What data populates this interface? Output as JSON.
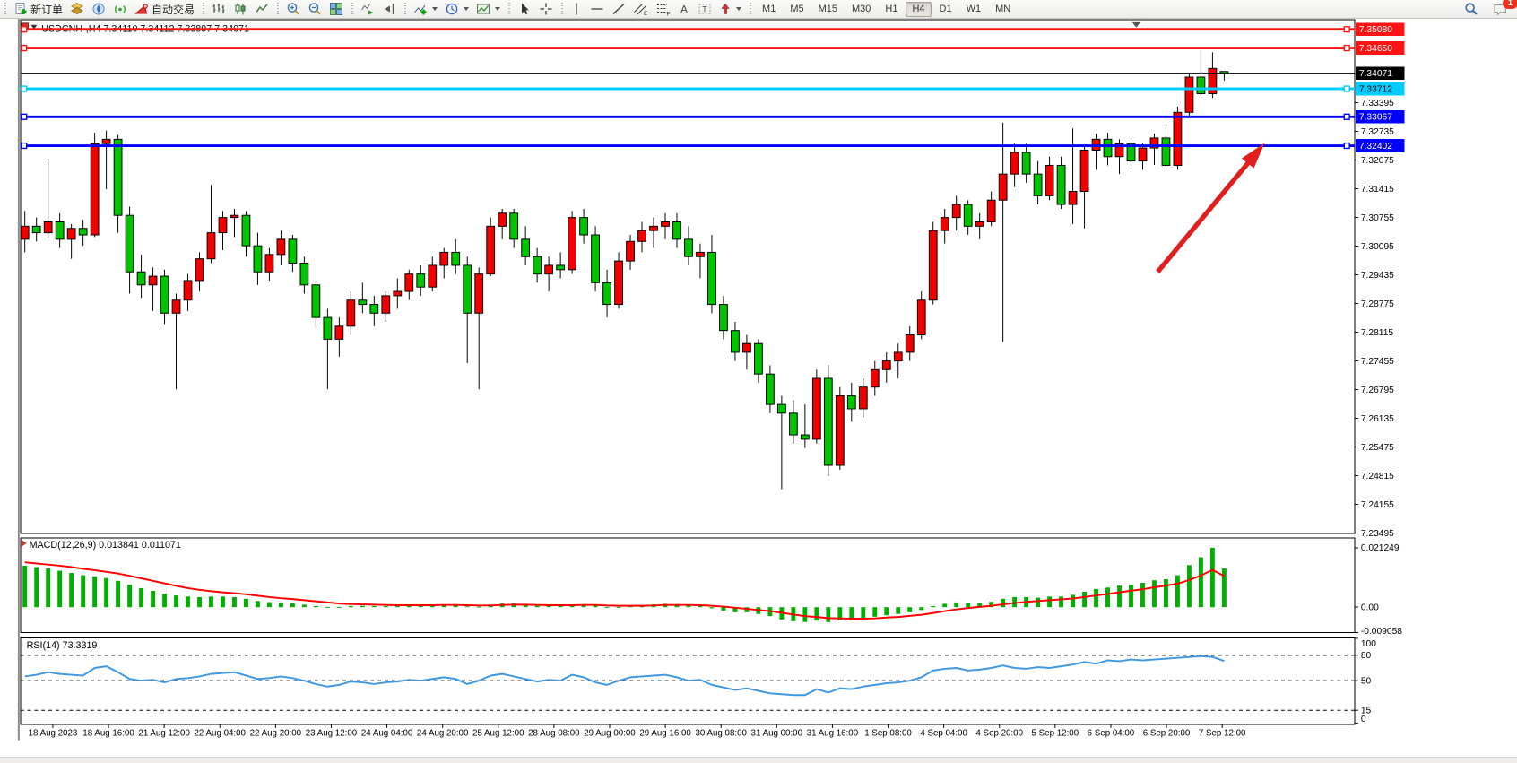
{
  "toolbar": {
    "new_order_label": "新订单",
    "autotrade_label": "自动交易",
    "glyphs": {
      "channel": "E",
      "fibonacci": "F",
      "text_tool": "A",
      "label_tool": "T"
    },
    "timeframes": [
      "M1",
      "M5",
      "M15",
      "M30",
      "H1",
      "H4",
      "D1",
      "W1",
      "MN"
    ],
    "active_timeframe": "H4",
    "notification_count": "1"
  },
  "chart_data": {
    "type": "candlestick",
    "symbol": "USDCNH-",
    "timeframe": "H4",
    "title_text": "USDCNH-,H4  7.34110 7.34112 7.33897 7.34071",
    "ohlc": {
      "open": "7.34110",
      "high": "7.34112",
      "low": "7.33897",
      "close": "7.34071"
    },
    "colors": {
      "up": "#f20000",
      "down": "#00c400",
      "outline": "#000000",
      "macd_hist": "#00b000",
      "macd_signal": "#ff0000",
      "rsi_line": "#3f98e0",
      "red_line": "#ff1414",
      "cyan_line": "#00ccff",
      "blue_line": "#0000ff",
      "arrow": "#e01f1f"
    },
    "price_axis": {
      "ticks": [
        "7.33395",
        "7.32735",
        "7.32075",
        "7.31415",
        "7.30755",
        "7.30095",
        "7.29435",
        "7.28775",
        "7.28115",
        "7.27455",
        "7.26795",
        "7.26135",
        "7.25475",
        "7.24815",
        "7.24155",
        "7.23495"
      ],
      "badges": [
        {
          "label": "7.35080",
          "price": 7.3508,
          "bg": "#ff1414",
          "fg": "#ffffff"
        },
        {
          "label": "7.34650",
          "price": 7.3465,
          "bg": "#ff1414",
          "fg": "#ffffff"
        },
        {
          "label": "7.34071",
          "price": 7.34071,
          "bg": "#000000",
          "fg": "#ffffff"
        },
        {
          "label": "7.33712",
          "price": 7.33712,
          "bg": "#00ccff",
          "fg": "#000000"
        },
        {
          "label": "7.33067",
          "price": 7.33067,
          "bg": "#0000ff",
          "fg": "#ffffff"
        },
        {
          "label": "7.32402",
          "price": 7.32402,
          "bg": "#0000ff",
          "fg": "#ffffff"
        }
      ]
    },
    "hlines": [
      {
        "price": 7.3508,
        "color": "#ff1414",
        "width": 3
      },
      {
        "price": 7.3465,
        "color": "#ff1414",
        "width": 3
      },
      {
        "price": 7.33712,
        "color": "#00ccff",
        "width": 3
      },
      {
        "price": 7.33067,
        "color": "#0000ff",
        "width": 3
      },
      {
        "price": 7.32402,
        "color": "#0000ff",
        "width": 3
      }
    ],
    "current_price": {
      "value": 7.34071,
      "label": "7.34071"
    },
    "time_axis": [
      "18 Aug 2023",
      "18 Aug 16:00",
      "21 Aug 12:00",
      "22 Aug 04:00",
      "22 Aug 20:00",
      "23 Aug 12:00",
      "24 Aug 04:00",
      "24 Aug 20:00",
      "25 Aug 12:00",
      "28 Aug 08:00",
      "29 Aug 00:00",
      "29 Aug 16:00",
      "30 Aug 08:00",
      "31 Aug 00:00",
      "31 Aug 16:00",
      "1 Sep 08:00",
      "4 Sep 04:00",
      "4 Sep 20:00",
      "5 Sep 12:00",
      "6 Sep 04:00",
      "6 Sep 20:00",
      "7 Sep 12:00"
    ],
    "candles": [
      [
        7.3025,
        7.309,
        7.2995,
        7.3055
      ],
      [
        7.3055,
        7.3075,
        7.302,
        7.304
      ],
      [
        7.304,
        7.321,
        7.303,
        7.3065
      ],
      [
        7.3065,
        7.3085,
        7.3005,
        7.3025
      ],
      [
        7.3025,
        7.306,
        7.298,
        7.305
      ],
      [
        7.305,
        7.307,
        7.301,
        7.3035
      ],
      [
        7.3035,
        7.327,
        7.303,
        7.3245
      ],
      [
        7.3245,
        7.3275,
        7.314,
        7.3255
      ],
      [
        7.3255,
        7.3265,
        7.304,
        7.308
      ],
      [
        7.308,
        7.31,
        7.29,
        7.295
      ],
      [
        7.295,
        7.299,
        7.289,
        7.292
      ],
      [
        7.292,
        7.296,
        7.286,
        7.294
      ],
      [
        7.294,
        7.2955,
        7.283,
        7.2855
      ],
      [
        7.2855,
        7.29,
        7.268,
        7.2885
      ],
      [
        7.2885,
        7.2945,
        7.286,
        7.293
      ],
      [
        7.293,
        7.2995,
        7.2905,
        7.298
      ],
      [
        7.298,
        7.315,
        7.297,
        7.304
      ],
      [
        7.304,
        7.309,
        7.3,
        7.3075
      ],
      [
        7.3075,
        7.3095,
        7.303,
        7.308
      ],
      [
        7.308,
        7.309,
        7.2985,
        7.301
      ],
      [
        7.301,
        7.304,
        7.292,
        7.295
      ],
      [
        7.295,
        7.3005,
        7.293,
        7.299
      ],
      [
        7.299,
        7.3045,
        7.2965,
        7.3025
      ],
      [
        7.3025,
        7.3035,
        7.295,
        7.297
      ],
      [
        7.297,
        7.2985,
        7.29,
        7.292
      ],
      [
        7.292,
        7.293,
        7.282,
        7.2845
      ],
      [
        7.2845,
        7.2865,
        7.268,
        7.2795
      ],
      [
        7.2795,
        7.2845,
        7.2755,
        7.2825
      ],
      [
        7.2825,
        7.2905,
        7.2805,
        7.2885
      ],
      [
        7.2885,
        7.2925,
        7.2855,
        7.2875
      ],
      [
        7.2875,
        7.2895,
        7.2825,
        7.2855
      ],
      [
        7.2855,
        7.2905,
        7.2835,
        7.2895
      ],
      [
        7.2895,
        7.2935,
        7.2865,
        7.2905
      ],
      [
        7.2905,
        7.2955,
        7.2885,
        7.2945
      ],
      [
        7.2945,
        7.2965,
        7.2895,
        7.2915
      ],
      [
        7.2915,
        7.2985,
        7.2905,
        7.2965
      ],
      [
        7.2965,
        7.3005,
        7.2935,
        7.2995
      ],
      [
        7.2995,
        7.3025,
        7.2945,
        7.2965
      ],
      [
        7.2965,
        7.2985,
        7.274,
        7.2855
      ],
      [
        7.2855,
        7.296,
        7.268,
        7.2945
      ],
      [
        7.2945,
        7.3075,
        7.294,
        7.3055
      ],
      [
        7.3055,
        7.3095,
        7.3025,
        7.3085
      ],
      [
        7.3085,
        7.3095,
        7.3005,
        7.3025
      ],
      [
        7.3025,
        7.3055,
        7.2965,
        7.2985
      ],
      [
        7.2985,
        7.3005,
        7.2925,
        7.2945
      ],
      [
        7.2945,
        7.2985,
        7.2905,
        7.2965
      ],
      [
        7.2965,
        7.2995,
        7.2935,
        7.2955
      ],
      [
        7.2955,
        7.309,
        7.2945,
        7.3075
      ],
      [
        7.3075,
        7.3095,
        7.3015,
        7.3035
      ],
      [
        7.3035,
        7.3055,
        7.2905,
        7.2925
      ],
      [
        7.2925,
        7.2955,
        7.2845,
        7.2875
      ],
      [
        7.2875,
        7.2995,
        7.2865,
        7.2975
      ],
      [
        7.2975,
        7.3035,
        7.2955,
        7.302
      ],
      [
        7.302,
        7.3065,
        7.2995,
        7.3045
      ],
      [
        7.3045,
        7.3075,
        7.3005,
        7.3055
      ],
      [
        7.3055,
        7.3085,
        7.3025,
        7.3065
      ],
      [
        7.3065,
        7.3085,
        7.3005,
        7.3025
      ],
      [
        7.3025,
        7.3055,
        7.2965,
        7.2985
      ],
      [
        7.2985,
        7.3015,
        7.2935,
        7.2995
      ],
      [
        7.2995,
        7.3035,
        7.2855,
        7.2875
      ],
      [
        7.2875,
        7.2895,
        7.2795,
        7.2815
      ],
      [
        7.2815,
        7.2835,
        7.2745,
        7.2765
      ],
      [
        7.2765,
        7.2805,
        7.2725,
        7.2785
      ],
      [
        7.2785,
        7.2795,
        7.2695,
        7.2715
      ],
      [
        7.2715,
        7.2735,
        7.2625,
        7.2645
      ],
      [
        7.2645,
        7.2665,
        7.245,
        7.2625
      ],
      [
        7.2625,
        7.2655,
        7.2555,
        7.2575
      ],
      [
        7.2575,
        7.2645,
        7.2545,
        7.2565
      ],
      [
        7.2565,
        7.2725,
        7.2555,
        7.2705
      ],
      [
        7.2705,
        7.2735,
        7.248,
        7.2505
      ],
      [
        7.2505,
        7.2685,
        7.2495,
        7.2665
      ],
      [
        7.2665,
        7.2695,
        7.2605,
        7.2635
      ],
      [
        7.2635,
        7.2705,
        7.2615,
        7.2685
      ],
      [
        7.2685,
        7.2745,
        7.2665,
        7.2725
      ],
      [
        7.2725,
        7.2765,
        7.2695,
        7.2745
      ],
      [
        7.2745,
        7.2785,
        7.2705,
        7.2765
      ],
      [
        7.2765,
        7.2825,
        7.2745,
        7.2805
      ],
      [
        7.2805,
        7.2905,
        7.2795,
        7.2885
      ],
      [
        7.2885,
        7.3065,
        7.2875,
        7.3045
      ],
      [
        7.3045,
        7.3095,
        7.3015,
        7.3075
      ],
      [
        7.3075,
        7.3125,
        7.3045,
        7.3105
      ],
      [
        7.3105,
        7.3115,
        7.3035,
        7.3055
      ],
      [
        7.3055,
        7.3085,
        7.3025,
        7.3065
      ],
      [
        7.3065,
        7.3135,
        7.3055,
        7.3115
      ],
      [
        7.3115,
        7.3293,
        7.2789,
        7.3175
      ],
      [
        7.3175,
        7.3245,
        7.3145,
        7.3225
      ],
      [
        7.3225,
        7.3245,
        7.3155,
        7.3175
      ],
      [
        7.3175,
        7.3205,
        7.3105,
        7.3125
      ],
      [
        7.3125,
        7.3215,
        7.3115,
        7.3195
      ],
      [
        7.3195,
        7.3215,
        7.3095,
        7.3105
      ],
      [
        7.3105,
        7.328,
        7.306,
        7.3135
      ],
      [
        7.3135,
        7.324,
        7.305,
        7.323
      ],
      [
        7.323,
        7.3268,
        7.3185,
        7.3255
      ],
      [
        7.3255,
        7.327,
        7.3195,
        7.3215
      ],
      [
        7.3215,
        7.3255,
        7.3175,
        7.3245
      ],
      [
        7.3245,
        7.3258,
        7.3185,
        7.3205
      ],
      [
        7.3205,
        7.3245,
        7.3185,
        7.3235
      ],
      [
        7.3235,
        7.3268,
        7.3196,
        7.3258
      ],
      [
        7.3258,
        7.329,
        7.318,
        7.3195
      ],
      [
        7.3195,
        7.333,
        7.3185,
        7.3317
      ],
      [
        7.3317,
        7.3405,
        7.3307,
        7.3398
      ],
      [
        7.3398,
        7.346,
        7.3355,
        7.336
      ],
      [
        7.336,
        7.3455,
        7.335,
        7.3418
      ],
      [
        7.3411,
        7.3411,
        7.339,
        7.3407
      ]
    ],
    "macd": {
      "label": "MACD(12,26,9)",
      "values_text": "0.013841 0.011071",
      "axis_labels": [
        {
          "label": "0.021249",
          "value": 0.021249
        },
        {
          "label": "0.00",
          "value": 0
        },
        {
          "label": "-0.009058",
          "value": -0.009058
        }
      ],
      "histogram": [
        0.0148,
        0.0143,
        0.0138,
        0.013,
        0.0122,
        0.0114,
        0.011,
        0.0104,
        0.0094,
        0.008,
        0.0068,
        0.0058,
        0.0048,
        0.0042,
        0.0038,
        0.0036,
        0.0038,
        0.0038,
        0.0036,
        0.003,
        0.0022,
        0.0018,
        0.0017,
        0.0014,
        0.0009,
        0.0004,
        0.0001,
        0.0001,
        0.0004,
        0.0005,
        0.0004,
        0.0004,
        0.0005,
        0.0007,
        0.0007,
        0.0008,
        0.001,
        0.0009,
        0.0003,
        0.0002,
        0.0008,
        0.0013,
        0.0013,
        0.0009,
        0.0005,
        0.0004,
        0.0004,
        0.0009,
        0.001,
        0.0006,
        0.0001,
        0.0001,
        0.0004,
        0.0007,
        0.001,
        0.0012,
        0.0011,
        0.0007,
        0.0004,
        -0.0004,
        -0.0012,
        -0.0018,
        -0.0018,
        -0.0024,
        -0.0032,
        -0.0044,
        -0.005,
        -0.0053,
        -0.0048,
        -0.0053,
        -0.0047,
        -0.0046,
        -0.004,
        -0.0034,
        -0.0029,
        -0.0024,
        -0.0018,
        -0.001,
        0.0004,
        0.0012,
        0.0017,
        0.0016,
        0.0016,
        0.0019,
        0.003,
        0.0036,
        0.0036,
        0.0034,
        0.0038,
        0.0038,
        0.0044,
        0.0055,
        0.0065,
        0.007,
        0.0077,
        0.008,
        0.0087,
        0.0096,
        0.01,
        0.0114,
        0.015,
        0.0178,
        0.0212,
        0.0138
      ],
      "signal": [
        0.016,
        0.0156,
        0.0152,
        0.0148,
        0.0143,
        0.0137,
        0.0132,
        0.0126,
        0.012,
        0.0112,
        0.0103,
        0.0094,
        0.0085,
        0.0076,
        0.0068,
        0.0062,
        0.0057,
        0.0053,
        0.005,
        0.0046,
        0.0041,
        0.0036,
        0.0032,
        0.0029,
        0.0025,
        0.0021,
        0.0017,
        0.0013,
        0.0011,
        0.001,
        0.0009,
        0.0008,
        0.0007,
        0.0007,
        0.0007,
        0.0007,
        0.0008,
        0.0008,
        0.0007,
        0.0006,
        0.0006,
        0.0008,
        0.0009,
        0.0009,
        0.0008,
        0.0007,
        0.0007,
        0.0007,
        0.0008,
        0.0008,
        0.0006,
        0.0005,
        0.0005,
        0.0005,
        0.0006,
        0.0008,
        0.0008,
        0.0008,
        0.0007,
        0.0005,
        0.0002,
        -0.0002,
        -0.0006,
        -0.001,
        -0.0014,
        -0.002,
        -0.0026,
        -0.0032,
        -0.0035,
        -0.0039,
        -0.004,
        -0.0041,
        -0.0041,
        -0.004,
        -0.0037,
        -0.0035,
        -0.0031,
        -0.0027,
        -0.0021,
        -0.0014,
        -0.0008,
        -0.0003,
        0.0001,
        0.0005,
        0.001,
        0.0015,
        0.0019,
        0.0022,
        0.0025,
        0.0028,
        0.0031,
        0.0036,
        0.0042,
        0.0047,
        0.0053,
        0.0059,
        0.0064,
        0.0071,
        0.0077,
        0.0084,
        0.0097,
        0.0113,
        0.0133,
        0.0111
      ]
    },
    "rsi": {
      "label": "RSI(14)",
      "value_text": "73.3319",
      "axis_labels": [
        {
          "label": "100",
          "value": 100
        },
        {
          "label": "80",
          "value": 80,
          "dashed": true
        },
        {
          "label": "50",
          "value": 50,
          "dashed": true
        },
        {
          "label": "15",
          "value": 15,
          "dashed": true
        },
        {
          "label": "0",
          "value": 0
        }
      ],
      "series": [
        55,
        57,
        60,
        58,
        57,
        56,
        65,
        67,
        60,
        52,
        50,
        51,
        48,
        52,
        53,
        55,
        58,
        59,
        60,
        56,
        52,
        53,
        55,
        53,
        50,
        46,
        43,
        45,
        49,
        48,
        46,
        48,
        49,
        51,
        50,
        52,
        54,
        52,
        46,
        50,
        56,
        58,
        55,
        52,
        49,
        51,
        50,
        57,
        54,
        48,
        45,
        50,
        54,
        55,
        56,
        57,
        54,
        50,
        51,
        45,
        42,
        39,
        41,
        38,
        35,
        34,
        33,
        33,
        40,
        36,
        41,
        40,
        43,
        45,
        47,
        48,
        50,
        54,
        62,
        64,
        65,
        62,
        63,
        65,
        68,
        65,
        64,
        66,
        65,
        67,
        69,
        72,
        70,
        74,
        73,
        75,
        74,
        75,
        76,
        77,
        78,
        79,
        78,
        73.3
      ]
    },
    "annotation_arrow": {
      "tail": [
        1302,
        310
      ],
      "tip": [
        1424,
        163
      ]
    }
  }
}
